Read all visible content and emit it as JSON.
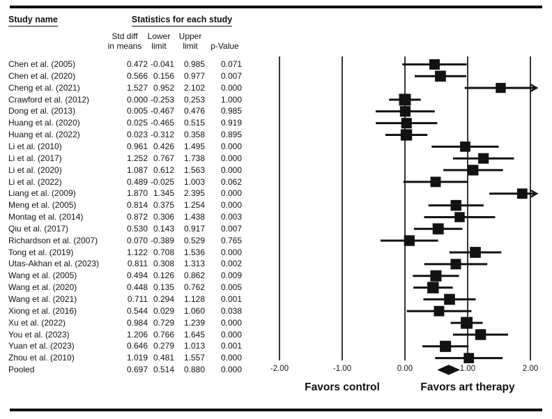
{
  "page": {
    "header": {
      "study_name_label": "Study name",
      "stats_title": "Statistics for each study"
    },
    "columns": [
      {
        "line1": "Std diff",
        "line2": "in means"
      },
      {
        "line1": "Lower",
        "line2": "limit"
      },
      {
        "line1": "Upper",
        "line2": "limit"
      },
      {
        "line1": "",
        "line2": "p-Value"
      }
    ]
  },
  "chart_data": {
    "type": "forest",
    "effect_measure": "Std diff in means",
    "xlim": [
      -2,
      2
    ],
    "tick_values": [
      -2,
      -1,
      0,
      1,
      2
    ],
    "tick_labels": [
      "-2.00",
      "-1.00",
      "0.00",
      "1.00",
      "2.00"
    ],
    "favors_left": "Favors control",
    "favors_right": "Favors art therapy",
    "columns": [
      "Std diff in means",
      "Lower limit",
      "Upper limit",
      "p-Value"
    ],
    "studies": [
      {
        "name": "Chen et al. (2005)",
        "mean": 0.472,
        "lower": -0.041,
        "upper": 0.985,
        "p": 0.071
      },
      {
        "name": "Chen et al. (2020)",
        "mean": 0.566,
        "lower": 0.156,
        "upper": 0.977,
        "p": 0.007
      },
      {
        "name": "Cheng et al. (2021)",
        "mean": 1.527,
        "lower": 0.952,
        "upper": 2.102,
        "p": 0.0
      },
      {
        "name": "Crawford et al. (2012)",
        "mean": 0.0,
        "lower": -0.253,
        "upper": 0.253,
        "p": 1.0
      },
      {
        "name": "Dong et al. (2013)",
        "mean": 0.005,
        "lower": -0.467,
        "upper": 0.476,
        "p": 0.985
      },
      {
        "name": "Huang et al. (2020)",
        "mean": 0.025,
        "lower": -0.465,
        "upper": 0.515,
        "p": 0.919
      },
      {
        "name": "Huang et al. (2022)",
        "mean": 0.023,
        "lower": -0.312,
        "upper": 0.358,
        "p": 0.895
      },
      {
        "name": "Li et al. (2010)",
        "mean": 0.961,
        "lower": 0.426,
        "upper": 1.495,
        "p": 0.0
      },
      {
        "name": "Li et al. (2017)",
        "mean": 1.252,
        "lower": 0.767,
        "upper": 1.738,
        "p": 0.0
      },
      {
        "name": "Li et al. (2020)",
        "mean": 1.087,
        "lower": 0.612,
        "upper": 1.563,
        "p": 0.0
      },
      {
        "name": "Li et al. (2022)",
        "mean": 0.489,
        "lower": -0.025,
        "upper": 1.003,
        "p": 0.062
      },
      {
        "name": "Liang et al. (2009)",
        "mean": 1.87,
        "lower": 1.345,
        "upper": 2.395,
        "p": 0.0
      },
      {
        "name": "Meng et al. (2005)",
        "mean": 0.814,
        "lower": 0.375,
        "upper": 1.254,
        "p": 0.0
      },
      {
        "name": "Montag et al. (2014)",
        "mean": 0.872,
        "lower": 0.306,
        "upper": 1.438,
        "p": 0.003
      },
      {
        "name": "Qiu et al. (2017)",
        "mean": 0.53,
        "lower": 0.143,
        "upper": 0.917,
        "p": 0.007
      },
      {
        "name": "Richardson et al. (2007)",
        "mean": 0.07,
        "lower": -0.389,
        "upper": 0.529,
        "p": 0.765
      },
      {
        "name": "Tong et al. (2019)",
        "mean": 1.122,
        "lower": 0.708,
        "upper": 1.536,
        "p": 0.0
      },
      {
        "name": "Utas-Akhan et al. (2023)",
        "mean": 0.811,
        "lower": 0.308,
        "upper": 1.313,
        "p": 0.002
      },
      {
        "name": "Wang et al. (2005)",
        "mean": 0.494,
        "lower": 0.126,
        "upper": 0.862,
        "p": 0.009
      },
      {
        "name": "Wang et al. (2020)",
        "mean": 0.448,
        "lower": 0.135,
        "upper": 0.762,
        "p": 0.005
      },
      {
        "name": "Wang et al. (2021)",
        "mean": 0.711,
        "lower": 0.294,
        "upper": 1.128,
        "p": 0.001
      },
      {
        "name": "Xiong et al. (2016)",
        "mean": 0.544,
        "lower": 0.029,
        "upper": 1.06,
        "p": 0.038
      },
      {
        "name": "Xu et al. (2022)",
        "mean": 0.984,
        "lower": 0.729,
        "upper": 1.239,
        "p": 0.0
      },
      {
        "name": "You et al. (2023)",
        "mean": 1.206,
        "lower": 0.766,
        "upper": 1.645,
        "p": 0.0
      },
      {
        "name": "Yuan et al. (2023)",
        "mean": 0.646,
        "lower": 0.279,
        "upper": 1.013,
        "p": 0.001
      },
      {
        "name": "Zhou et al. (2010)",
        "mean": 1.019,
        "lower": 0.481,
        "upper": 1.557,
        "p": 0.0
      }
    ],
    "pooled": {
      "name": "Pooled",
      "mean": 0.697,
      "lower": 0.514,
      "upper": 0.88,
      "p": 0.0
    }
  },
  "colors": {
    "ink": "#121212",
    "background": "#ffffff"
  }
}
